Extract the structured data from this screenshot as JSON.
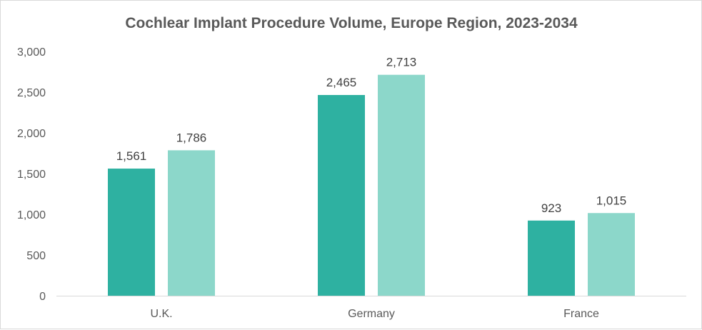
{
  "chart_data": {
    "type": "bar",
    "title": "Cochlear Implant Procedure Volume, Europe Region, 2023-2034",
    "xlabel": "",
    "ylabel": "",
    "categories": [
      "U.K.",
      "Germany",
      "France"
    ],
    "series": [
      {
        "values": [
          1561,
          2465,
          923
        ],
        "labels": [
          "1,561",
          "2,465",
          "923"
        ],
        "color": "#2EB1A1"
      },
      {
        "values": [
          1786,
          2713,
          1015
        ],
        "labels": [
          "1,786",
          "2,713",
          "1,015"
        ],
        "color": "#8CD7CA"
      }
    ],
    "ylim": [
      0,
      3000
    ],
    "yticks": [
      0,
      500,
      1000,
      1500,
      2000,
      2500,
      3000
    ],
    "ytick_labels": [
      "0",
      "500",
      "1,000",
      "1,500",
      "2,000",
      "2,500",
      "3,000"
    ],
    "grid": false,
    "legend": "none"
  }
}
